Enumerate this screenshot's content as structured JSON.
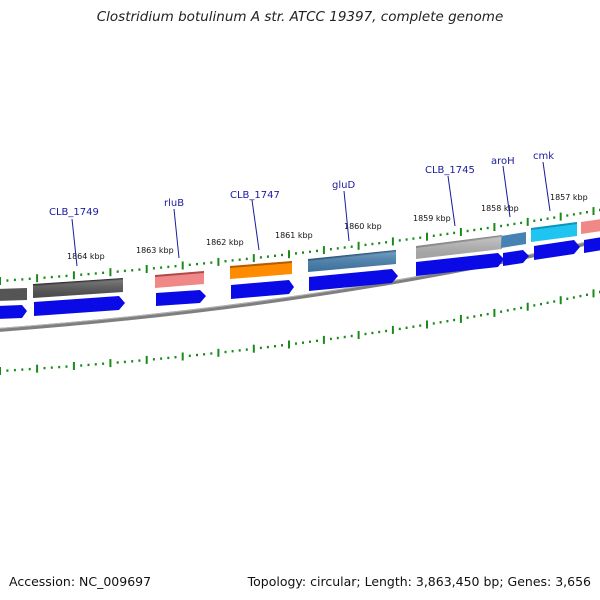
{
  "title": "Clostridium botulinum A str. ATCC 19397, complete genome",
  "accession_text": "Accession: NC_009697",
  "summary_text": "Topology: circular; Length: 3,863,450 bp; Genes: 3,656",
  "colors": {
    "backbone": "#7f7f7f",
    "tick": "#1a8a1a",
    "cds_arrow": "#0a0ae6",
    "label": "#1a1aa0"
  },
  "tick_labels": [
    "1864 kbp",
    "1863 kbp",
    "1862 kbp",
    "1861 kbp",
    "1860 kbp",
    "1859 kbp",
    "1858 kbp",
    "1857 kbp"
  ],
  "gene_labels": [
    "CLB_1749",
    "rluB",
    "CLB_1747",
    "gluD",
    "CLB_1745",
    "aroH",
    "cmk"
  ],
  "feature_colors": [
    "#555555",
    "#555555",
    "#f08888",
    "#ff8c00",
    "#4682b4",
    "#b8b8b8",
    "#4682b4",
    "#20c4f0",
    "#f08888"
  ]
}
